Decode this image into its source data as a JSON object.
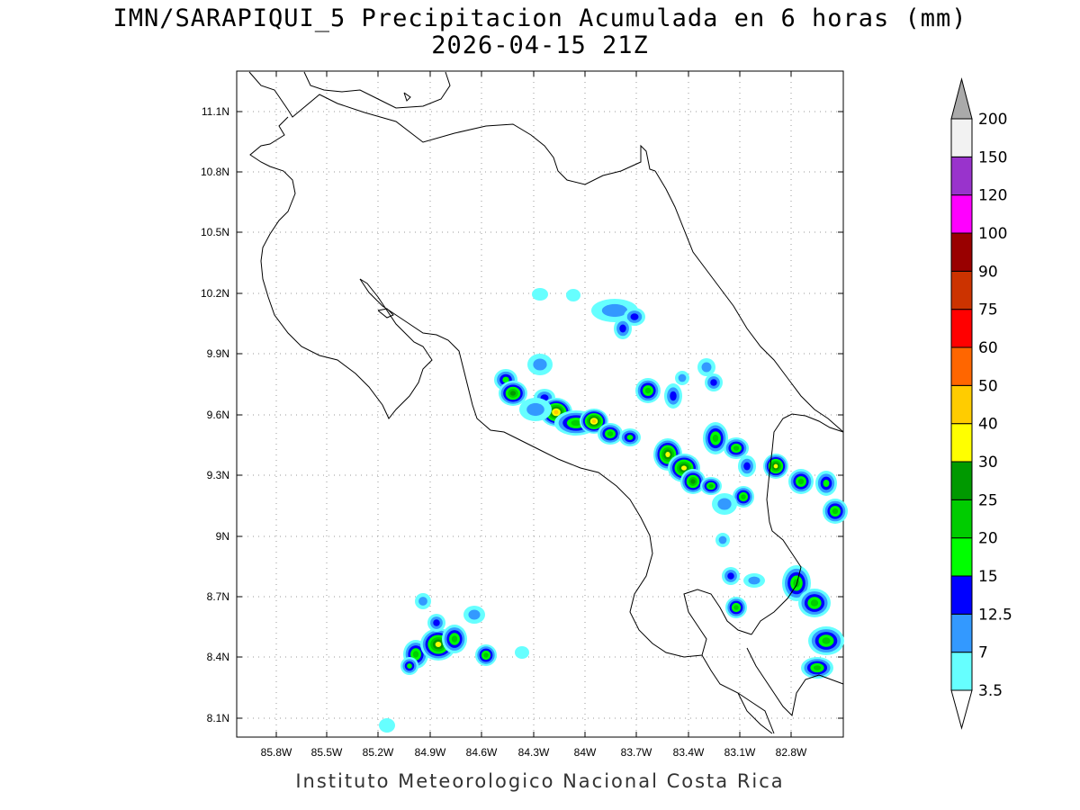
{
  "title": "IMN/SARAPIQUI_5 Precipitacion Acumulada en 6 horas (mm)",
  "subtitle": "2026-04-15 21Z",
  "footer": "Instituto Meteorologico Nacional Costa Rica",
  "map": {
    "lon_ticks": [
      "85.8W",
      "85.5W",
      "85.2W",
      "84.9W",
      "84.6W",
      "84.3W",
      "84W",
      "83.7W",
      "83.4W",
      "83.1W",
      "82.8W"
    ],
    "lat_ticks": [
      "11.1N",
      "10.8N",
      "10.5N",
      "10.2N",
      "9.9N",
      "9.6N",
      "9.3N",
      "9N",
      "8.7N",
      "8.4N",
      "8.1N"
    ],
    "grid": true
  },
  "colorbar": {
    "labels": [
      "3.5",
      "7",
      "12.5",
      "15",
      "20",
      "25",
      "30",
      "40",
      "50",
      "60",
      "75",
      "90",
      "100",
      "120",
      "150",
      "200"
    ],
    "colors": [
      "#66ffff",
      "#3399ff",
      "#0000ff",
      "#00ff00",
      "#00cc00",
      "#009900",
      "#ffff00",
      "#ffcc00",
      "#ff6600",
      "#ff0000",
      "#cc3300",
      "#990000",
      "#ff00ff",
      "#9933cc",
      "#f2f2f2",
      "#aaaaaa"
    ]
  }
}
